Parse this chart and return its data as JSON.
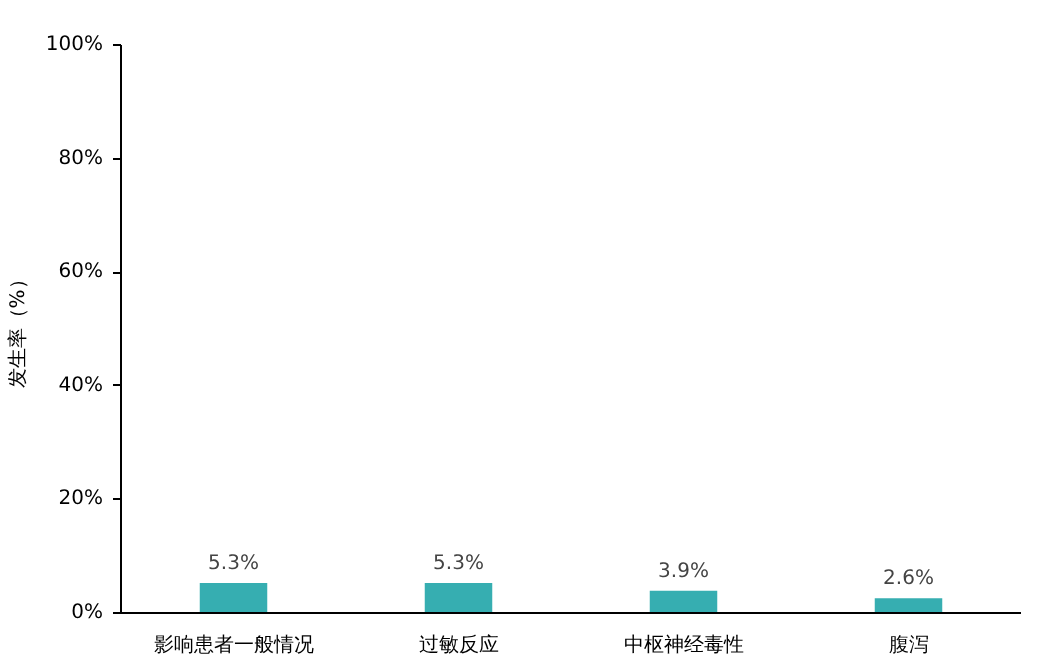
{
  "chart_data": {
    "type": "bar",
    "ylabel": "发生率（%）",
    "categories": [
      "影响患者一般情况",
      "过敏反应",
      "中枢神经毒性",
      "腹泻"
    ],
    "values": [
      5.3,
      5.3,
      3.9,
      2.6
    ],
    "value_labels": [
      "5.3%",
      "5.3%",
      "3.9%",
      "2.6%"
    ],
    "color": "#36aeb1",
    "ylim": [
      0,
      100
    ],
    "yticks": [
      {
        "value": 0,
        "label": "0%"
      },
      {
        "value": 20,
        "label": "20%"
      },
      {
        "value": 40,
        "label": "40%"
      },
      {
        "value": 60,
        "label": "60%"
      },
      {
        "value": 80,
        "label": "80%"
      },
      {
        "value": 100,
        "label": "100%"
      }
    ],
    "grid": false
  }
}
